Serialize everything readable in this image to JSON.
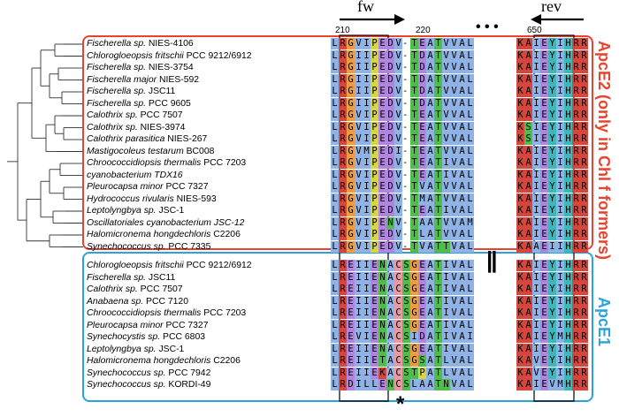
{
  "colors": {
    "apce2_box": "#e8432e",
    "apce1_box": "#29a3db",
    "blue": "#8fb3e6",
    "red": "#d7463c",
    "purple": "#b184e0",
    "yellow": "#d6d644",
    "cyan": "#3bb8bb",
    "green": "#4fbd4a",
    "pink": "#e79aa6",
    "magenta": "#d45ad4",
    "orange": "#ef9b3e",
    "white": "#ffffff"
  },
  "primers": {
    "fw": "fw",
    "rev": "rev"
  },
  "positions": {
    "p210": "210",
    "p220": "220",
    "p650": "650"
  },
  "groups": {
    "apce2": "ApcE2 (only in Chl f formers)",
    "apce1": "ApcE1"
  },
  "marks": {
    "dots": "• • •",
    "pause": "||",
    "star": "*"
  },
  "rows": [
    {
      "sp": "Fischerella sp.",
      "st": "NIES-4106",
      "a": "LRGVIPEDV-TEATVVAL",
      "b": "KAIEYIHRR"
    },
    {
      "sp": "Chlorogloeopsis fritschii",
      "st": "PCC 9212/6912",
      "a": "LRGIIPEDV-TDATVVAL",
      "b": "KAIEYIHRR"
    },
    {
      "sp": "Fischerella sp.",
      "st": "NIES-3754",
      "a": "LRGIIPEDV-TDATVVAL",
      "b": "KAIEYIHRR"
    },
    {
      "sp": "Fischerella major",
      "st": "NIES-592",
      "a": "LRGIIPEDV-TDATVVAL",
      "b": "KAIEYIHRR"
    },
    {
      "sp": "Fischerella sp.",
      "st": "JSC11",
      "a": "LRGIIPEDV-TDATVVAL",
      "b": "KAIEYIHRR"
    },
    {
      "sp": "Fischerella sp.",
      "st": "PCC 9605",
      "a": "LRGIIPEDV-TDATVVAL",
      "b": "KAIEYIHRR"
    },
    {
      "sp": "Calothrix sp.",
      "st": "PCC 7507",
      "a": "LRGVIPEDV-TEATVVAL",
      "b": "KAIEYIHRR"
    },
    {
      "sp": "Calothrix sp.",
      "st": "NIES-3974",
      "a": "LRGVIPEDV-TEATVVAL",
      "b": "KSIEYIHRR"
    },
    {
      "sp": "Calothrix parasitica",
      "st": "NIES-267",
      "a": "LRGVIPEDV-TEATVVAL",
      "b": "KSIEYIHRR"
    },
    {
      "sp": "Mastigocoleus testarum",
      "st": "BC008",
      "a": "LRGVMPEDI-TEATVVAL",
      "b": "KAIEYIHRR"
    },
    {
      "sp": "Chroococcidiopsis thermalis",
      "st": "PCC 7203",
      "a": "LRGVIPEDV-TEATIVAL",
      "b": "KAIEYIHRR"
    },
    {
      "sp": "cyanobacterium TDX16",
      "st": "",
      "a": "LRGVIPEDV-TEATIVAL",
      "b": "KAIEYIHRR"
    },
    {
      "sp": "Pleurocapsa minor",
      "st": "PCC 7327",
      "a": "LRGVIPEDV-TVATVVAL",
      "b": "KAIEYIHRR"
    },
    {
      "sp": "Hydrococcus rivularis",
      "st": "NIES-593",
      "a": "LRGVIPEDV-TMATVVAL",
      "b": "KAIEYIHRR"
    },
    {
      "sp": "Leptolyngbya sp.",
      "st": "JSC-1",
      "a": "LRGVIPEDV-TEATIVAL",
      "b": "KAIEYIHRR"
    },
    {
      "sp": "Oscillatoriales cyanobacterium JSC-12",
      "st": "",
      "a": "LRGVIPENV-TAATVVAM",
      "b": "KAIEYIHRR"
    },
    {
      "sp": "Halomicronema hongdechloris",
      "st": "C2206",
      "a": "LRGVIPEDV-TLATVVAL",
      "b": "KAIEYIHRR"
    },
    {
      "sp": "Synechococcus sp.",
      "st": "PCC 7335",
      "a": "LRGVIPEDV-TVATTVAL",
      "b": "KAAEIIHRR"
    },
    {
      "sp": "Chlorogloeopsis fritschii",
      "st": "PCC 9212/6912",
      "a": "LREIIENACSGEATIVAL",
      "b": "KAIEYIHRR"
    },
    {
      "sp": "Fischerella sp.",
      "st": "JSC11",
      "a": "LREIIENACSGEATIVAL",
      "b": "KAIEYIHRR"
    },
    {
      "sp": "Calothrix sp.",
      "st": "PCC 7507",
      "a": "LREIIENACSGEATIVAL",
      "b": "KAIEYIHRR"
    },
    {
      "sp": "Anabaena sp.",
      "st": "PCC 7120",
      "a": "LREIIENACSGEATIVAL",
      "b": "KAIEYIHRR"
    },
    {
      "sp": "Chroococcidiopsis thermalis",
      "st": "PCC 7203",
      "a": "LREIIENACSGEATIVAL",
      "b": "KAIEYIHRR"
    },
    {
      "sp": "Pleurocapsa minor",
      "st": "PCC 7327",
      "a": "LREIIENACSGEATIVAL",
      "b": "KAIEYIHRR"
    },
    {
      "sp": "Synechocystis sp.",
      "st": "PCC 6803",
      "a": "LREVIENACSIDATIVAI",
      "b": "KAIEYMHRR"
    },
    {
      "sp": "Leptolyngbya sp.",
      "st": "JSC-1",
      "a": "LREIIENACSGEATIVAL",
      "b": "KAIEYIHRR"
    },
    {
      "sp": "Halomicronema hongdechloris",
      "st": "C2206",
      "a": "LREIIETACSGSATLVAL",
      "b": "KAVEYIHRR"
    },
    {
      "sp": "Synechococcus sp.",
      "st": "PCC 7942",
      "a": "LREIIEKACSTPATLVAL",
      "b": "KAVEYIHRR"
    },
    {
      "sp": "Synechococcus sp.",
      "st": "KORDI-49",
      "a": "LRDILLENCSLAATNVAL",
      "b": "KAIEVMHRR"
    }
  ]
}
